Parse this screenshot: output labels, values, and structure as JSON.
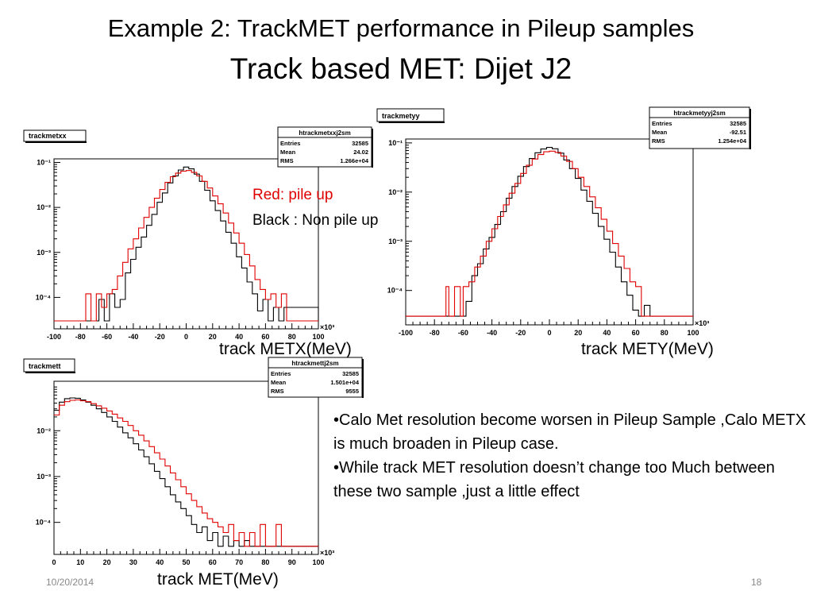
{
  "slide": {
    "title_line1": "Example 2:  TrackMET performance in Pileup samples",
    "title_line2": "Track based MET: Dijet J2",
    "legend_red": "Red: pile up",
    "legend_black": "Black : Non pile up",
    "notes": [
      "•Calo Met resolution become worsen in Pileup Sample ,Calo METX is much broaden in Pileup case.",
      "•While track MET resolution doesn’t change too Much between these two sample ,just a little effect"
    ],
    "date": "10/20/2014",
    "page": "18"
  },
  "colors": {
    "pileup": "#e00000",
    "nonpileup": "#000000",
    "frame": "#000000"
  },
  "chart_data": [
    {
      "type": "line",
      "name_box": "trackmetxx",
      "stats": {
        "title": "htrackmetxxj2sm",
        "rows": [
          [
            "Entries",
            "32585"
          ],
          [
            "Mean",
            "24.02"
          ],
          [
            "RMS",
            "1.266e+04"
          ]
        ]
      },
      "xlabel": "track METX(MeV)",
      "x_multiplier": "×10³",
      "xlim": [
        -100,
        100
      ],
      "xticks": [
        "-100",
        "-80",
        "-60",
        "-40",
        "-20",
        "0",
        "20",
        "40",
        "60",
        "80",
        "100"
      ],
      "ylog": true,
      "ylim": [
        2e-05,
        0.12
      ],
      "yticks": [
        "10⁻¹",
        "10⁻²",
        "10⁻³",
        "10⁻⁴"
      ],
      "series": [
        {
          "color": "#000000",
          "x": [
            -100,
            -70,
            -66,
            -62,
            -58,
            -54,
            -50,
            -46,
            -42,
            -38,
            -34,
            -30,
            -26,
            -22,
            -18,
            -14,
            -10,
            -6,
            -2,
            2,
            6,
            10,
            14,
            18,
            22,
            26,
            30,
            34,
            38,
            42,
            46,
            50,
            54,
            58,
            62,
            66,
            70,
            74,
            100
          ],
          "y": [
            3e-05,
            3e-05,
            9e-05,
            3e-05,
            0.00012,
            6e-05,
            9e-05,
            0.00035,
            0.0007,
            0.0013,
            0.0022,
            0.004,
            0.007,
            0.013,
            0.021,
            0.035,
            0.05,
            0.068,
            0.079,
            0.072,
            0.055,
            0.038,
            0.024,
            0.014,
            0.0085,
            0.005,
            0.0028,
            0.0016,
            0.0008,
            0.00045,
            0.00022,
            0.00012,
            5e-05,
            9e-05,
            3e-05,
            6e-05,
            3e-05,
            6e-05,
            3e-05
          ]
        },
        {
          "color": "#e00000",
          "x": [
            -100,
            -76,
            -72,
            -68,
            -64,
            -60,
            -56,
            -52,
            -48,
            -44,
            -40,
            -36,
            -32,
            -28,
            -24,
            -20,
            -16,
            -12,
            -8,
            -4,
            0,
            4,
            8,
            12,
            16,
            20,
            24,
            28,
            32,
            36,
            40,
            44,
            48,
            52,
            56,
            60,
            64,
            68,
            72,
            76,
            100
          ],
          "y": [
            3e-05,
            0.00012,
            3e-05,
            0.00012,
            6e-05,
            0.00012,
            0.00015,
            0.0003,
            0.0006,
            0.0012,
            0.002,
            0.0035,
            0.006,
            0.01,
            0.016,
            0.025,
            0.036,
            0.048,
            0.058,
            0.064,
            0.066,
            0.06,
            0.05,
            0.038,
            0.027,
            0.018,
            0.012,
            0.0075,
            0.0045,
            0.0027,
            0.0016,
            0.0009,
            0.0005,
            0.00025,
            0.00015,
            9e-05,
            0.00012,
            6e-05,
            0.00012,
            3e-05,
            3e-05
          ]
        }
      ]
    },
    {
      "type": "line",
      "name_box": "trackmetyy",
      "stats": {
        "title": "htrackmetyyj2sm",
        "rows": [
          [
            "Entries",
            "32585"
          ],
          [
            "Mean",
            "-92.51"
          ],
          [
            "RMS",
            "1.254e+04"
          ]
        ]
      },
      "xlabel": "track METY(MeV)",
      "x_multiplier": "×10³",
      "xlim": [
        -100,
        100
      ],
      "xticks": [
        "-100",
        "-80",
        "-60",
        "-40",
        "-20",
        "0",
        "20",
        "40",
        "60",
        "80",
        "100"
      ],
      "ylog": true,
      "ylim": [
        2e-05,
        0.12
      ],
      "yticks": [
        "10⁻¹",
        "10⁻²",
        "10⁻³",
        "10⁻⁴"
      ],
      "series": [
        {
          "color": "#000000",
          "x": [
            -100,
            -58,
            -54,
            -50,
            -46,
            -42,
            -38,
            -34,
            -30,
            -26,
            -22,
            -18,
            -14,
            -10,
            -6,
            -2,
            2,
            6,
            10,
            14,
            18,
            22,
            26,
            30,
            34,
            38,
            42,
            46,
            50,
            54,
            58,
            62,
            66,
            70,
            100
          ],
          "y": [
            3e-05,
            6e-05,
            0.0002,
            0.00035,
            0.0007,
            0.0012,
            0.0022,
            0.004,
            0.0075,
            0.013,
            0.021,
            0.033,
            0.048,
            0.063,
            0.075,
            0.081,
            0.076,
            0.062,
            0.045,
            0.03,
            0.019,
            0.011,
            0.0065,
            0.0037,
            0.002,
            0.0011,
            0.0006,
            0.0003,
            0.00015,
            8e-05,
            4e-05,
            3e-05,
            5e-05,
            3e-05,
            3e-05
          ]
        },
        {
          "color": "#e00000",
          "x": [
            -100,
            -72,
            -70,
            -66,
            -62,
            -60,
            -56,
            -52,
            -48,
            -44,
            -40,
            -36,
            -32,
            -28,
            -24,
            -20,
            -16,
            -12,
            -8,
            -4,
            0,
            4,
            8,
            12,
            16,
            20,
            24,
            28,
            32,
            36,
            40,
            44,
            48,
            52,
            56,
            60,
            64,
            100
          ],
          "y": [
            3e-05,
            0.00012,
            3e-05,
            0.00012,
            3e-05,
            0.00012,
            0.00015,
            0.0003,
            0.0005,
            0.001,
            0.0018,
            0.0032,
            0.0055,
            0.0095,
            0.015,
            0.024,
            0.035,
            0.047,
            0.058,
            0.066,
            0.068,
            0.064,
            0.054,
            0.042,
            0.03,
            0.02,
            0.013,
            0.008,
            0.0048,
            0.0028,
            0.0016,
            0.0009,
            0.0005,
            0.00028,
            0.00015,
            0.00012,
            3e-05,
            3e-05
          ]
        }
      ]
    },
    {
      "type": "line",
      "name_box": "trackmett",
      "stats": {
        "title": "htrackmettj2sm",
        "rows": [
          [
            "Entries",
            "32585"
          ],
          [
            "Mean",
            "1.501e+04"
          ],
          [
            "RMS",
            "9555"
          ]
        ]
      },
      "xlabel": "track MET(MeV)",
      "x_multiplier": "×10³",
      "xlim": [
        0,
        100
      ],
      "xticks": [
        "0",
        "10",
        "20",
        "30",
        "40",
        "50",
        "60",
        "70",
        "80",
        "90",
        "100"
      ],
      "ylog": true,
      "ylim": [
        2e-05,
        0.12
      ],
      "yticks": [
        "10⁻²",
        "10⁻³",
        "10⁻⁴"
      ],
      "series": [
        {
          "color": "#000000",
          "x": [
            0,
            2,
            4,
            6,
            8,
            10,
            12,
            14,
            16,
            18,
            20,
            22,
            24,
            26,
            28,
            30,
            32,
            34,
            36,
            38,
            40,
            42,
            44,
            46,
            48,
            50,
            52,
            54,
            56,
            58,
            60,
            62,
            64,
            66,
            68,
            70,
            72,
            74,
            100
          ],
          "y": [
            0.028,
            0.042,
            0.05,
            0.052,
            0.051,
            0.047,
            0.042,
            0.036,
            0.03,
            0.025,
            0.02,
            0.016,
            0.012,
            0.009,
            0.007,
            0.0052,
            0.0038,
            0.0027,
            0.0019,
            0.0013,
            0.0009,
            0.0006,
            0.0004,
            0.00028,
            0.0002,
            0.00014,
            9e-05,
            6e-05,
            8e-05,
            4e-05,
            6e-05,
            3e-05,
            5e-05,
            3e-05,
            4e-05,
            3e-05,
            4e-05,
            3e-05,
            3e-05
          ]
        },
        {
          "color": "#e00000",
          "x": [
            0,
            2,
            4,
            6,
            8,
            10,
            12,
            14,
            16,
            18,
            20,
            22,
            24,
            26,
            28,
            30,
            32,
            34,
            36,
            38,
            40,
            42,
            44,
            46,
            48,
            50,
            52,
            54,
            56,
            58,
            60,
            62,
            64,
            66,
            68,
            70,
            72,
            74,
            76,
            78,
            80,
            82,
            84,
            86,
            100
          ],
          "y": [
            0.022,
            0.036,
            0.043,
            0.046,
            0.047,
            0.045,
            0.043,
            0.039,
            0.035,
            0.031,
            0.027,
            0.023,
            0.019,
            0.016,
            0.013,
            0.01,
            0.008,
            0.006,
            0.0045,
            0.0033,
            0.0024,
            0.0017,
            0.0012,
            0.00085,
            0.0006,
            0.00042,
            0.0003,
            0.00022,
            0.00016,
            0.00012,
            0.0001,
            8e-05,
            6e-05,
            9e-05,
            4e-05,
            6e-05,
            3e-05,
            6e-05,
            3e-05,
            9e-05,
            3e-05,
            3e-05,
            9e-05,
            3e-05,
            3e-05
          ]
        }
      ]
    }
  ]
}
